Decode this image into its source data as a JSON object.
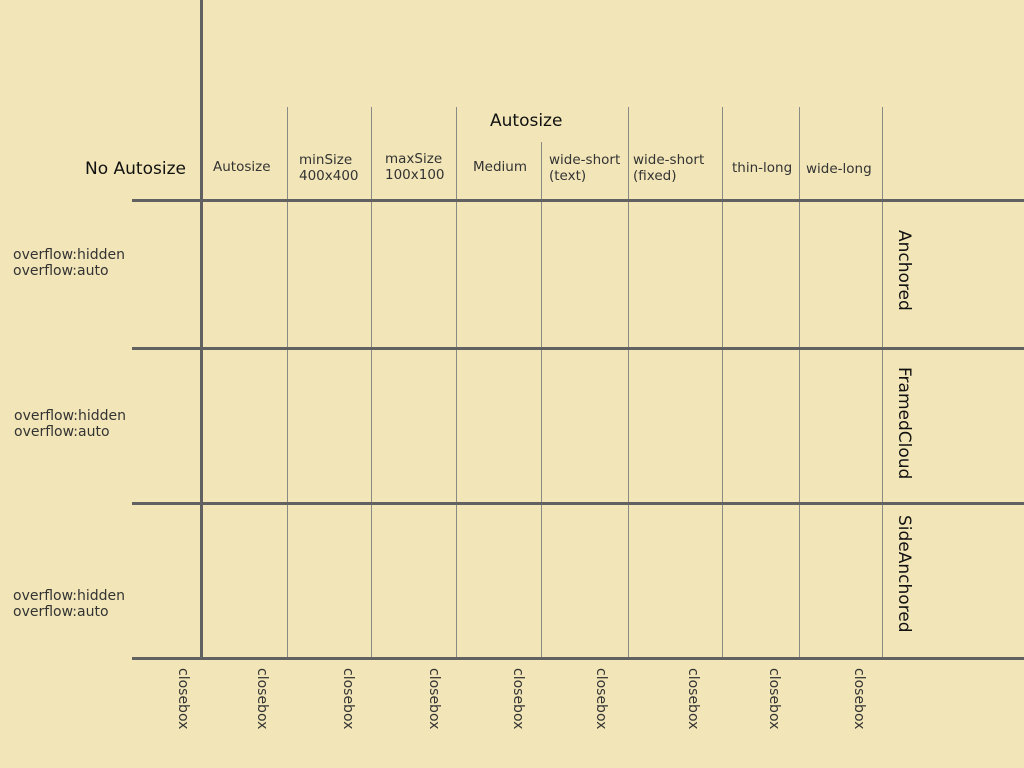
{
  "header": {
    "autosize_group_title": "Autosize",
    "no_autosize_title": "No Autosize"
  },
  "columns": [
    {
      "label": "Autosize"
    },
    {
      "label": "minSize\n400x400"
    },
    {
      "label": "maxSize\n100x100"
    },
    {
      "label": "Medium"
    },
    {
      "label": "wide-short\n(text)"
    },
    {
      "label": "wide-short\n(fixed)"
    },
    {
      "label": "thin-long"
    },
    {
      "label": "wide-long"
    }
  ],
  "rows": [
    {
      "title": "Anchored",
      "overflow_hidden": "overflow:hidden",
      "overflow_auto": "overflow:auto"
    },
    {
      "title": "FramedCloud",
      "overflow_hidden": "overflow:hidden",
      "overflow_auto": "overflow:auto"
    },
    {
      "title": "SideAnchored",
      "overflow_hidden": "overflow:hidden",
      "overflow_auto": "overflow:auto"
    }
  ],
  "closeboxes": [
    "closebox",
    "closebox",
    "closebox",
    "closebox",
    "closebox",
    "closebox",
    "closebox",
    "closebox",
    "closebox"
  ]
}
